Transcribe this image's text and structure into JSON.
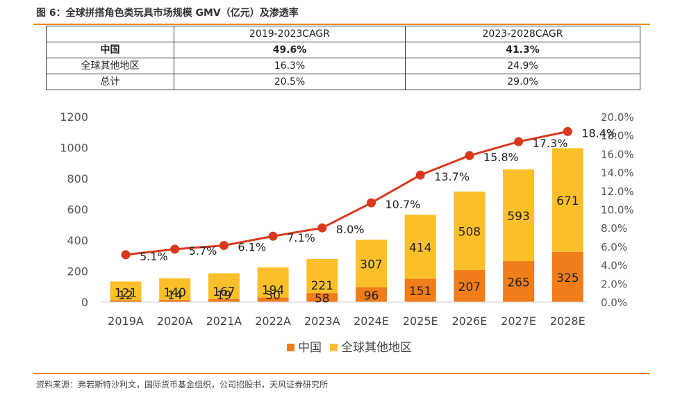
{
  "figure_title": "图 6：全球拼搭角色类玩具市场规模 GMV（亿元）及渗透率",
  "table": {
    "headers": [
      "",
      "2019-2023CAGR",
      "2023-2028CAGR"
    ],
    "rows": [
      [
        "中国",
        "49.6%",
        "41.3%"
      ],
      [
        "全球其他地区",
        "16.3%",
        "24.9%"
      ],
      [
        "总计",
        "20.5%",
        "29.0%"
      ]
    ]
  },
  "source": "资料来源：弗若斯特沙利文，国际货币基金组织，公司招股书，天风证券研究所",
  "colors": {
    "china": "#f07d1a",
    "rest_of_world": "#fbbf2a",
    "line": "#d9381e",
    "rule": "#f08a1a"
  },
  "chart_data": {
    "type": "bar",
    "stacked": true,
    "categories": [
      "2019A",
      "2020A",
      "2021A",
      "2022A",
      "2023A",
      "2024E",
      "2025E",
      "2026E",
      "2027E",
      "2028E"
    ],
    "series": [
      {
        "name": "中国",
        "values": [
          12,
          14,
          19,
          30,
          58,
          96,
          151,
          207,
          265,
          325
        ]
      },
      {
        "name": "全球其他地区",
        "values": [
          121,
          140,
          167,
          194,
          221,
          307,
          414,
          508,
          593,
          671
        ]
      }
    ],
    "line_series": {
      "name": "渗透率",
      "axis": "right",
      "values": [
        5.1,
        5.7,
        6.1,
        7.1,
        8.0,
        10.7,
        13.7,
        15.8,
        17.3,
        18.4
      ],
      "labels": [
        "5.1%",
        "5.7%",
        "6.1%",
        "7.1%",
        "8.0%",
        "10.7%",
        "13.7%",
        "15.8%",
        "17.3%",
        "18.4%"
      ]
    },
    "left_axis": {
      "min": 0,
      "max": 1200,
      "ticks": [
        "0",
        "200",
        "400",
        "600",
        "800",
        "1000",
        "1200"
      ]
    },
    "right_axis": {
      "min": 0,
      "max": 20,
      "ticks": [
        "0.0%",
        "2.0%",
        "4.0%",
        "6.0%",
        "8.0%",
        "10.0%",
        "12.0%",
        "14.0%",
        "16.0%",
        "18.0%",
        "20.0%"
      ]
    },
    "legend_position": "bottom-center",
    "grid": false
  }
}
